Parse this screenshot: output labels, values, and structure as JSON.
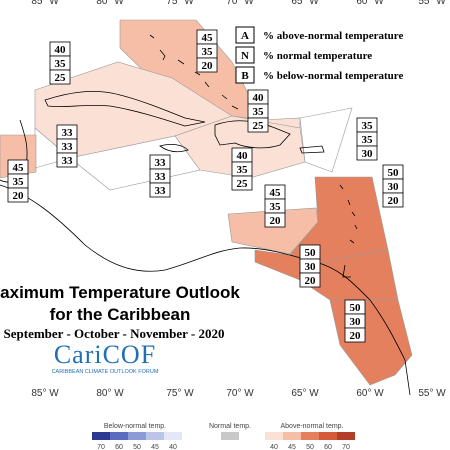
{
  "title": [
    "Maximum Temperature Outlook",
    "for the Caribbean"
  ],
  "subtitle": "September - October - November - 2020",
  "logo": {
    "name": "CariCOF",
    "tagline": "CARIBBEAN CLIMATE OUTLOOK FORUM"
  },
  "key": [
    {
      "letter": "A",
      "text": "% above-normal temperature"
    },
    {
      "letter": "N",
      "text": "% normal temperature"
    },
    {
      "letter": "B",
      "text": "% below-normal temperature"
    }
  ],
  "longitudes": [
    "85° W",
    "80° W",
    "75° W",
    "70° W",
    "65° W",
    "60° W",
    "55° W"
  ],
  "regions": [
    {
      "values": [
        45,
        35,
        20
      ]
    },
    {
      "values": [
        40,
        35,
        25
      ]
    },
    {
      "values": [
        40,
        35,
        25
      ]
    },
    {
      "values": [
        33,
        33,
        33
      ]
    },
    {
      "values": [
        33,
        33,
        33
      ]
    },
    {
      "values": [
        40,
        35,
        25
      ]
    },
    {
      "values": [
        35,
        35,
        30
      ]
    },
    {
      "values": [
        50,
        30,
        20
      ]
    },
    {
      "values": [
        45,
        35,
        20
      ]
    },
    {
      "values": [
        45,
        35,
        20
      ]
    },
    {
      "values": [
        50,
        30,
        20
      ]
    },
    {
      "values": [
        50,
        30,
        20
      ]
    }
  ],
  "colorbar": {
    "below_label": "Below-normal temp.",
    "below_ticks": [
      70,
      60,
      50,
      45,
      40
    ],
    "below_colors": [
      "#2b3990",
      "#5a6bc0",
      "#8c9ad6",
      "#bcc4e8",
      "#e4e8f6"
    ],
    "normal_label": "Normal temp.",
    "normal_color": "#c8c8c8",
    "above_label": "Above-normal temp.",
    "above_ticks": [
      40,
      45,
      50,
      60,
      70
    ],
    "above_colors": [
      "#fbe0d5",
      "#f6bea6",
      "#e5805f",
      "#d45a3b",
      "#b43d27"
    ]
  }
}
